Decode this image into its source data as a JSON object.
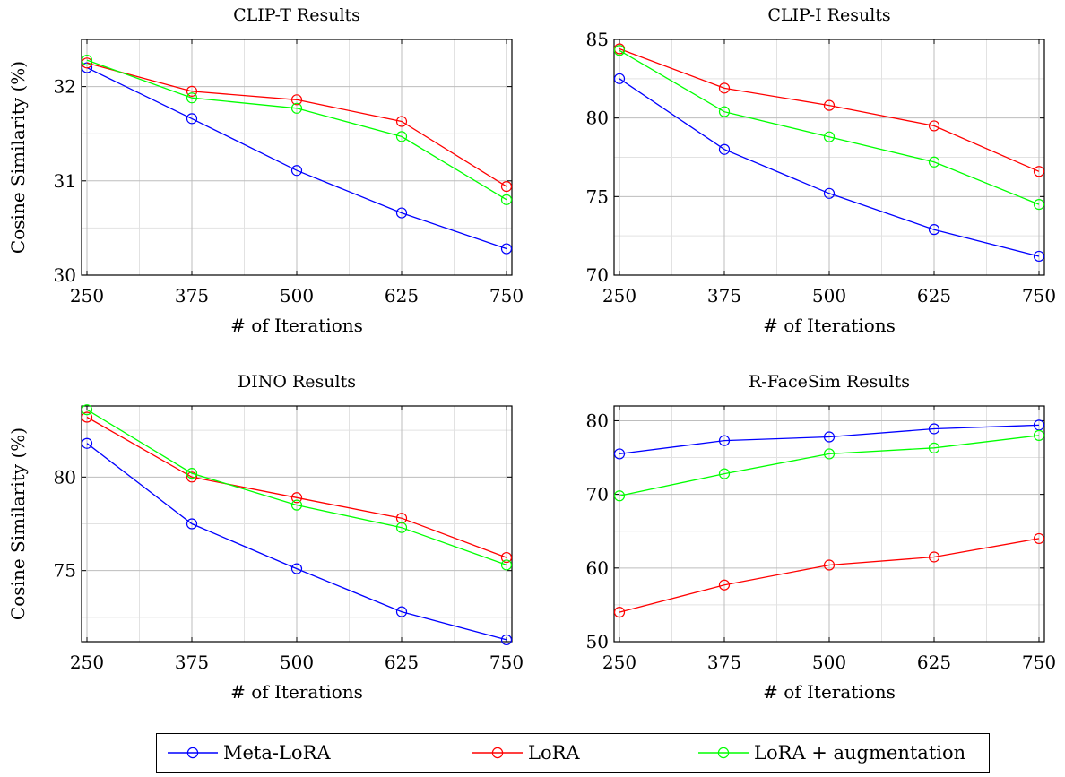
{
  "legend": [
    {
      "label": "Meta-LoRA",
      "color": "#0000ff"
    },
    {
      "label": "LoRA",
      "color": "#ff0000"
    },
    {
      "label": "LoRA + augmentation",
      "color": "#00ff00"
    }
  ],
  "chart_data": [
    {
      "type": "line",
      "title": "CLIP-T Results",
      "xlabel": "# of Iterations",
      "ylabel": "Cosine Similarity (%)",
      "x": [
        250,
        375,
        500,
        625,
        750
      ],
      "xticks": [
        250,
        375,
        500,
        625,
        750
      ],
      "ylim": [
        30,
        32.5
      ],
      "yticks": [
        30,
        31,
        32
      ],
      "grid": true,
      "series": [
        {
          "name": "Meta-LoRA",
          "color": "#0000ff",
          "values": [
            32.2,
            31.66,
            31.11,
            30.66,
            30.28
          ]
        },
        {
          "name": "LoRA",
          "color": "#ff0000",
          "values": [
            32.25,
            31.95,
            31.86,
            31.63,
            30.94
          ]
        },
        {
          "name": "LoRA + augmentation",
          "color": "#00ff00",
          "values": [
            32.28,
            31.88,
            31.77,
            31.47,
            30.8
          ]
        }
      ]
    },
    {
      "type": "line",
      "title": "CLIP-I Results",
      "xlabel": "# of Iterations",
      "ylabel": "",
      "x": [
        250,
        375,
        500,
        625,
        750
      ],
      "xticks": [
        250,
        375,
        500,
        625,
        750
      ],
      "ylim": [
        70,
        85
      ],
      "yticks": [
        70,
        75,
        80,
        85
      ],
      "grid": true,
      "series": [
        {
          "name": "Meta-LoRA",
          "color": "#0000ff",
          "values": [
            82.5,
            78.0,
            75.2,
            72.9,
            71.2
          ]
        },
        {
          "name": "LoRA",
          "color": "#ff0000",
          "values": [
            84.4,
            81.9,
            80.8,
            79.5,
            76.6
          ]
        },
        {
          "name": "LoRA + augmentation",
          "color": "#00ff00",
          "values": [
            84.3,
            80.4,
            78.8,
            77.2,
            74.5
          ]
        }
      ]
    },
    {
      "type": "line",
      "title": "DINO Results",
      "xlabel": "# of Iterations",
      "ylabel": "Cosine Similarity (%)",
      "x": [
        250,
        375,
        500,
        625,
        750
      ],
      "xticks": [
        250,
        375,
        500,
        625,
        750
      ],
      "ylim": [
        71.2,
        83.8
      ],
      "yticks": [
        75,
        80
      ],
      "grid": true,
      "series": [
        {
          "name": "Meta-LoRA",
          "color": "#0000ff",
          "values": [
            81.8,
            77.5,
            75.1,
            72.8,
            71.3
          ]
        },
        {
          "name": "LoRA",
          "color": "#ff0000",
          "values": [
            83.2,
            80.0,
            78.9,
            77.8,
            75.7
          ]
        },
        {
          "name": "LoRA + augmentation",
          "color": "#00ff00",
          "values": [
            83.6,
            80.2,
            78.5,
            77.3,
            75.3
          ]
        }
      ]
    },
    {
      "type": "line",
      "title": "R-FaceSim Results",
      "xlabel": "# of Iterations",
      "ylabel": "",
      "x": [
        250,
        375,
        500,
        625,
        750
      ],
      "xticks": [
        250,
        375,
        500,
        625,
        750
      ],
      "ylim": [
        50,
        82
      ],
      "yticks": [
        50,
        60,
        70,
        80
      ],
      "grid": true,
      "series": [
        {
          "name": "Meta-LoRA",
          "color": "#0000ff",
          "values": [
            75.5,
            77.3,
            77.8,
            78.9,
            79.4
          ]
        },
        {
          "name": "LoRA",
          "color": "#ff0000",
          "values": [
            54.0,
            57.7,
            60.4,
            61.5,
            64.0
          ]
        },
        {
          "name": "LoRA + augmentation",
          "color": "#00ff00",
          "values": [
            69.8,
            72.8,
            75.5,
            76.3,
            78.0
          ]
        }
      ]
    }
  ]
}
